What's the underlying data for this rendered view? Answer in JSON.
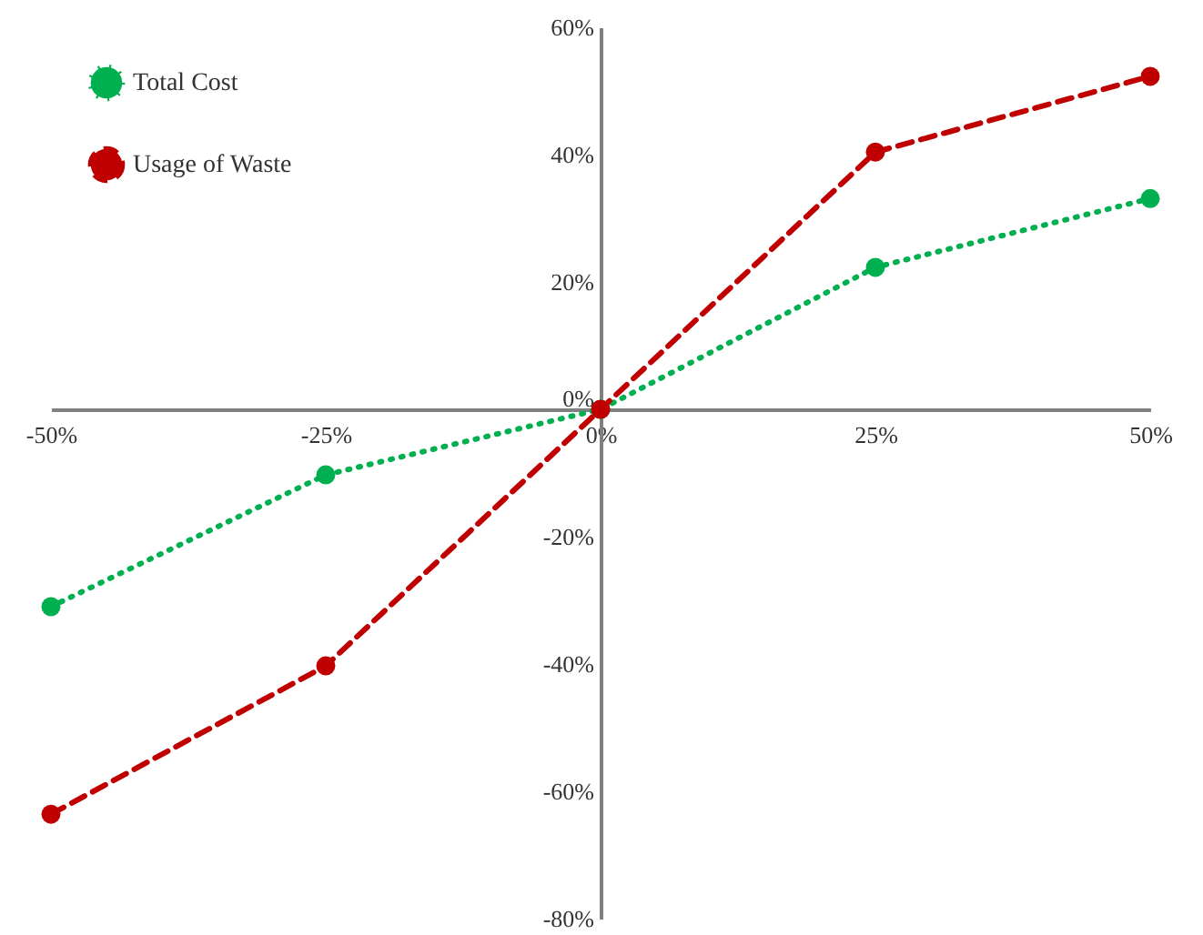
{
  "chart_data": {
    "type": "line",
    "x": [
      -50,
      -25,
      0,
      25,
      50
    ],
    "series": [
      {
        "name": "Total Cost",
        "color": "#00b050",
        "line_style": "dotted",
        "marker": "circle",
        "values": [
          -31,
          -10.3,
          0,
          22.3,
          33.1
        ]
      },
      {
        "name": "Usage of Waste",
        "color": "#c00000",
        "line_style": "dashed",
        "marker": "circle",
        "values": [
          -63.6,
          -40.3,
          0,
          40.4,
          52.3
        ]
      }
    ],
    "xlim": [
      -50,
      50
    ],
    "ylim": [
      -80,
      60
    ],
    "xticks": [
      {
        "value": -50,
        "label": "-50%"
      },
      {
        "value": -25,
        "label": "-25%"
      },
      {
        "value": 0,
        "label": "0%"
      },
      {
        "value": 25,
        "label": "25%"
      },
      {
        "value": 50,
        "label": "50%"
      }
    ],
    "yticks": [
      {
        "value": -80,
        "label": "-80%"
      },
      {
        "value": -60,
        "label": "-60%"
      },
      {
        "value": -40,
        "label": "-40%"
      },
      {
        "value": -20,
        "label": "-20%"
      },
      {
        "value": 0,
        "label": "0%"
      },
      {
        "value": 20,
        "label": "20%"
      },
      {
        "value": 40,
        "label": "40%"
      },
      {
        "value": 60,
        "label": "60%"
      }
    ],
    "grid": false,
    "legend": "top left"
  }
}
